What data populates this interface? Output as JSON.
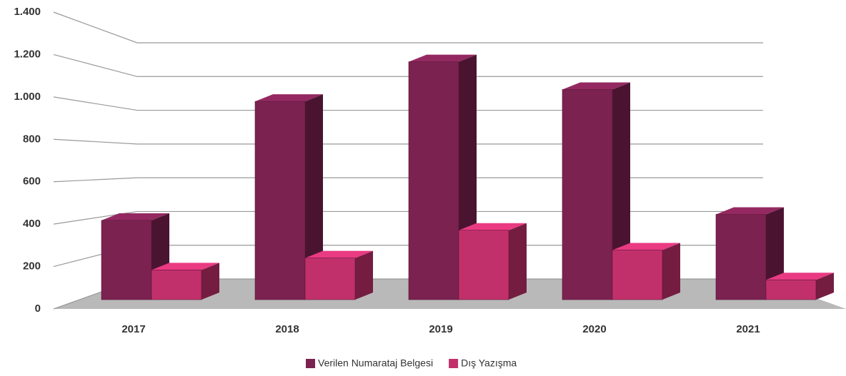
{
  "chart_data": {
    "type": "bar3d",
    "categories": [
      "2017",
      "2018",
      "2019",
      "2020",
      "2021"
    ],
    "series": [
      {
        "name": "Verilen Numarataj Belgesi",
        "color": "#7b2251",
        "values": [
          400,
          1000,
          1200,
          1060,
          430
        ]
      },
      {
        "name": "Dış Yazışma",
        "color": "#c2306c",
        "values": [
          150,
          210,
          350,
          250,
          100
        ]
      }
    ],
    "ylim": [
      0,
      1400
    ],
    "yticks": [
      0,
      200,
      400,
      600,
      800,
      {
        "value": 1000,
        "label": "1.000"
      },
      {
        "value": 1200,
        "label": "1.200"
      },
      {
        "value": 1400,
        "label": "1.400"
      }
    ],
    "grid": true
  }
}
